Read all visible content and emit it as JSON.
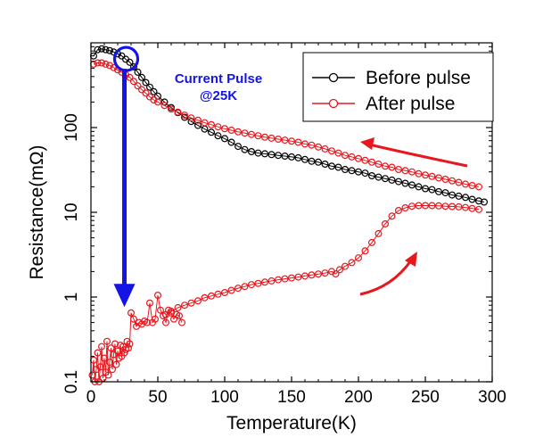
{
  "chart_data": {
    "type": "scatter",
    "xlabel": "Temperature(K)",
    "ylabel": "Resistance(mΩ)",
    "xlim": [
      0,
      300
    ],
    "ylim": [
      0.1,
      1000
    ],
    "log_y": true,
    "grid": false,
    "legend_placement": "top-right",
    "x_ticks": [
      0,
      50,
      100,
      150,
      200,
      250,
      300
    ],
    "x_tick_labels": [
      "0",
      "50",
      "100",
      "150",
      "200",
      "250",
      "300"
    ],
    "y_ticks": [
      0.1,
      1,
      10,
      100
    ],
    "y_tick_labels": [
      "0.1",
      "1",
      "10",
      "100"
    ],
    "series": [
      {
        "name": "Before pulse",
        "color": "#000000",
        "x": [
          2,
          5,
          8,
          11,
          14,
          17,
          20,
          23,
          26,
          29,
          32,
          35,
          38,
          41,
          44,
          47,
          50,
          55,
          60,
          65,
          70,
          75,
          80,
          85,
          90,
          95,
          100,
          105,
          110,
          115,
          120,
          125,
          130,
          135,
          140,
          145,
          150,
          155,
          160,
          165,
          170,
          175,
          180,
          185,
          190,
          195,
          200,
          205,
          210,
          215,
          220,
          225,
          230,
          235,
          240,
          245,
          250,
          255,
          260,
          265,
          270,
          275,
          280,
          285,
          290,
          294
        ],
        "y": [
          700,
          830,
          850,
          830,
          810,
          780,
          740,
          700,
          640,
          590,
          520,
          450,
          390,
          340,
          300,
          265,
          235,
          200,
          172,
          150,
          132,
          118,
          106,
          96,
          88,
          80,
          74,
          67,
          60,
          55,
          52,
          50,
          49,
          48,
          47,
          46,
          45,
          44,
          42,
          40,
          39,
          37,
          35,
          34,
          32,
          31,
          30,
          29,
          27,
          26,
          25,
          24,
          23,
          22,
          21,
          20,
          19,
          18.5,
          17.5,
          17,
          16,
          15.5,
          15,
          14.2,
          13.6,
          13.2
        ]
      },
      {
        "name": "After pulse",
        "color": "#e8171e",
        "x": [
          2,
          5,
          8,
          11,
          14,
          17,
          20,
          23,
          26,
          29,
          32,
          35,
          38,
          41,
          44,
          47,
          50,
          55,
          60,
          65,
          70,
          75,
          80,
          85,
          90,
          95,
          100,
          105,
          110,
          115,
          120,
          125,
          130,
          135,
          140,
          145,
          150,
          155,
          160,
          165,
          170,
          175,
          180,
          185,
          190,
          195,
          200,
          205,
          210,
          215,
          220,
          225,
          230,
          235,
          240,
          245,
          250,
          255,
          260,
          265,
          270,
          275,
          280,
          285,
          290
        ],
        "y": [
          560,
          580,
          580,
          560,
          540,
          510,
          480,
          450,
          420,
          390,
          350,
          310,
          280,
          255,
          230,
          212,
          200,
          182,
          165,
          152,
          140,
          130,
          122,
          114,
          108,
          102,
          97,
          93,
          89,
          86,
          83,
          80,
          77,
          75,
          73,
          71,
          69,
          67,
          64,
          62,
          59,
          56,
          53,
          50,
          47,
          45,
          43,
          41,
          39,
          37,
          35,
          34,
          32,
          31,
          30,
          28.5,
          27.5,
          26.5,
          25.5,
          24.5,
          23.5,
          22.5,
          21.5,
          20.7,
          20
        ]
      },
      {
        "name": "",
        "color": "#e8171e",
        "x": [
          1,
          2,
          3,
          4,
          5,
          6,
          7,
          8,
          9,
          10,
          11,
          12,
          13,
          14,
          15,
          16,
          17,
          18,
          19,
          20,
          21,
          22,
          23,
          24,
          25,
          26,
          27,
          28,
          29,
          30,
          32,
          34,
          36,
          38,
          40,
          42,
          44,
          46,
          48,
          50,
          52,
          54,
          56,
          58,
          60,
          62,
          64,
          66,
          68
        ],
        "y": [
          0.12,
          0.18,
          0.1,
          0.14,
          0.22,
          0.1,
          0.15,
          0.26,
          0.11,
          0.19,
          0.13,
          0.3,
          0.12,
          0.17,
          0.25,
          0.14,
          0.21,
          0.28,
          0.16,
          0.23,
          0.19,
          0.27,
          0.2,
          0.26,
          0.22,
          0.24,
          0.3,
          0.25,
          0.28,
          0.65,
          0.55,
          0.45,
          0.5,
          0.48,
          0.52,
          0.5,
          0.85,
          0.5,
          0.55,
          1.05,
          0.7,
          0.6,
          0.5,
          0.7,
          0.65,
          0.55,
          0.62,
          0.6,
          0.5
        ]
      },
      {
        "name": "",
        "color": "#e8171e",
        "x": [
          56,
          60,
          65,
          70,
          75,
          80,
          85,
          90,
          95,
          100,
          105,
          110,
          115,
          120,
          125,
          130,
          135,
          140,
          145,
          150,
          155,
          160,
          165,
          170,
          175,
          180,
          183,
          186,
          190,
          195,
          200,
          205,
          210,
          215,
          220,
          225,
          230,
          235,
          240,
          245,
          250,
          255,
          260,
          265,
          270,
          275,
          280,
          285,
          290
        ],
        "y": [
          0.62,
          0.68,
          0.75,
          0.8,
          0.85,
          0.9,
          0.98,
          1.03,
          1.08,
          1.13,
          1.2,
          1.27,
          1.33,
          1.4,
          1.45,
          1.5,
          1.55,
          1.6,
          1.64,
          1.68,
          1.72,
          1.77,
          1.82,
          1.87,
          1.92,
          2.0,
          1.88,
          2.1,
          2.3,
          2.55,
          2.9,
          3.5,
          4.4,
          5.6,
          7.3,
          9.0,
          10.5,
          11.3,
          11.8,
          12,
          12,
          12,
          11.9,
          11.8,
          11.7,
          11.6,
          11.4,
          11.1,
          10.8
        ]
      }
    ],
    "annotations": {
      "pulse_line1": "Current Pulse",
      "pulse_line2": "@25K",
      "pulse_temperature": 25,
      "pulse_from_resistance": 600,
      "pulse_to_resistance": 0.8
    }
  }
}
